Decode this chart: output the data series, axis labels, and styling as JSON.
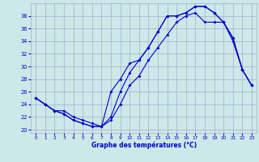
{
  "title": "Graphe des températures (°C)",
  "background_color": "#cce8e8",
  "grid_color": "#aaaacc",
  "line_color": "#0000cc",
  "xlim": [
    -0.5,
    23.5
  ],
  "ylim": [
    19.5,
    40
  ],
  "yticks": [
    20,
    22,
    24,
    26,
    28,
    30,
    32,
    34,
    36,
    38
  ],
  "xticks": [
    0,
    1,
    2,
    3,
    4,
    5,
    6,
    7,
    8,
    9,
    10,
    11,
    12,
    13,
    14,
    15,
    16,
    17,
    18,
    19,
    20,
    21,
    22,
    23
  ],
  "hours": [
    0,
    1,
    2,
    3,
    4,
    5,
    6,
    7,
    8,
    9,
    10,
    11,
    12,
    13,
    14,
    15,
    16,
    17,
    18,
    19,
    20,
    21,
    22,
    23
  ],
  "line1": [
    25,
    24,
    23,
    22.5,
    21.5,
    21,
    20.5,
    20.5,
    26,
    28,
    30.5,
    31,
    33,
    35.5,
    38,
    38,
    38.5,
    39.5,
    39.5,
    38.5,
    37,
    34.5,
    29.5,
    27
  ],
  "line2": [
    25,
    24,
    23,
    22.5,
    21.5,
    21,
    20.5,
    20.5,
    22,
    26,
    29,
    31,
    33,
    35.5,
    38,
    38,
    38.5,
    39.5,
    39.5,
    38.5,
    37,
    34.5,
    29.5,
    27
  ],
  "line3": [
    25,
    24,
    23,
    23,
    22,
    21.5,
    21,
    20.5,
    21.5,
    24,
    27,
    28.5,
    31,
    33,
    35,
    37,
    38,
    38.5,
    37,
    37,
    37,
    34,
    29.5,
    27
  ]
}
